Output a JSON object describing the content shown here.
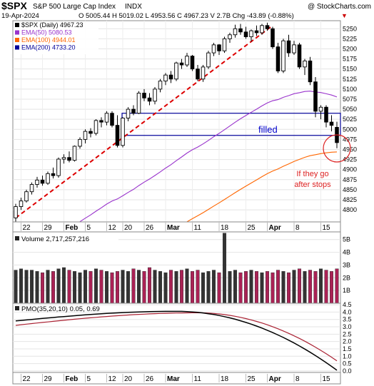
{
  "header": {
    "symbol": "$SPX",
    "name": "S&P 500 Large Cap Index",
    "exchange": "INDX",
    "copyright": "@ StockCharts.com",
    "date": "19-Apr-2024",
    "quote": "O 5005.44  H 5019.02  L 4953.56  C 4967.23  V 2.7B  Chg -43.89 (-0.88%)",
    "change_arrow": "▼"
  },
  "legend": [
    {
      "label": "$SPX (Daily) 4967.23",
      "color": "#000000"
    },
    {
      "label": "EMA(50) 5080.53",
      "color": "#9933cc"
    },
    {
      "label": "EMA(100) 4944.01",
      "color": "#ff6600"
    },
    {
      "label": "EMA(200) 4733.20",
      "color": "#000099"
    }
  ],
  "annotations": {
    "filled": "filled",
    "note_line1": "If they go",
    "note_line2": "after stops"
  },
  "volume_label": "Volume 2,717,257,216",
  "pmo_label": "PMO(35,20,10) 0.05, 0.69",
  "x_axis_labels": [
    "22",
    "29",
    "Feb",
    "5",
    "12",
    "20",
    "26",
    "Mar",
    "11",
    "18",
    "25",
    "Apr",
    "8",
    "15"
  ],
  "colors": {
    "up": "#000000",
    "down": "#000000",
    "ema50": "#9933cc",
    "ema100": "#ff6600",
    "ema200": "#000099",
    "trend": "#dd0000",
    "filled_box": "#000099",
    "vol_up": "#333333",
    "vol_down": "#aa2255",
    "pmo": "#000000",
    "pmo_signal": "#aa2233"
  },
  "chart_data": [
    {
      "type": "candlestick",
      "ylim": [
        4770,
        5270
      ],
      "y_ticks": [
        4800,
        4825,
        4850,
        4875,
        4900,
        4925,
        4950,
        4975,
        5000,
        5025,
        5050,
        5075,
        5100,
        5125,
        5150,
        5175,
        5200,
        5225,
        5250
      ],
      "candles": [
        {
          "o": 4780,
          "h": 4815,
          "l": 4770,
          "c": 4808
        },
        {
          "o": 4808,
          "h": 4830,
          "l": 4800,
          "c": 4822
        },
        {
          "o": 4822,
          "h": 4850,
          "l": 4818,
          "c": 4845
        },
        {
          "o": 4845,
          "h": 4868,
          "l": 4838,
          "c": 4863
        },
        {
          "o": 4863,
          "h": 4882,
          "l": 4855,
          "c": 4874
        },
        {
          "o": 4874,
          "h": 4885,
          "l": 4860,
          "c": 4866
        },
        {
          "o": 4866,
          "h": 4895,
          "l": 4862,
          "c": 4890
        },
        {
          "o": 4890,
          "h": 4905,
          "l": 4878,
          "c": 4885
        },
        {
          "o": 4885,
          "h": 4930,
          "l": 4880,
          "c": 4926
        },
        {
          "o": 4926,
          "h": 4938,
          "l": 4915,
          "c": 4930
        },
        {
          "o": 4930,
          "h": 4945,
          "l": 4918,
          "c": 4923
        },
        {
          "o": 4923,
          "h": 4960,
          "l": 4920,
          "c": 4958
        },
        {
          "o": 4958,
          "h": 4980,
          "l": 4952,
          "c": 4975
        },
        {
          "o": 4975,
          "h": 5000,
          "l": 4965,
          "c": 4995
        },
        {
          "o": 4995,
          "h": 5003,
          "l": 4980,
          "c": 4990
        },
        {
          "o": 4990,
          "h": 5025,
          "l": 4985,
          "c": 5022
        },
        {
          "o": 5022,
          "h": 5030,
          "l": 5005,
          "c": 5018
        },
        {
          "o": 5018,
          "h": 5045,
          "l": 5010,
          "c": 5040
        },
        {
          "o": 5040,
          "h": 5045,
          "l": 5005,
          "c": 5010
        },
        {
          "o": 5010,
          "h": 5035,
          "l": 4955,
          "c": 4960
        },
        {
          "o": 4960,
          "h": 5030,
          "l": 4955,
          "c": 5028
        },
        {
          "o": 5028,
          "h": 5055,
          "l": 5020,
          "c": 5050
        },
        {
          "o": 5050,
          "h": 5060,
          "l": 5035,
          "c": 5040
        },
        {
          "o": 5040,
          "h": 5095,
          "l": 5038,
          "c": 5090
        },
        {
          "o": 5090,
          "h": 5100,
          "l": 5070,
          "c": 5078
        },
        {
          "o": 5078,
          "h": 5090,
          "l": 5060,
          "c": 5070
        },
        {
          "o": 5070,
          "h": 5105,
          "l": 5062,
          "c": 5100
        },
        {
          "o": 5100,
          "h": 5125,
          "l": 5092,
          "c": 5120
        },
        {
          "o": 5120,
          "h": 5140,
          "l": 5110,
          "c": 5135
        },
        {
          "o": 5135,
          "h": 5145,
          "l": 5115,
          "c": 5125
        },
        {
          "o": 5125,
          "h": 5168,
          "l": 5120,
          "c": 5165
        },
        {
          "o": 5165,
          "h": 5175,
          "l": 5150,
          "c": 5160
        },
        {
          "o": 5160,
          "h": 5190,
          "l": 5155,
          "c": 5182
        },
        {
          "o": 5182,
          "h": 5185,
          "l": 5145,
          "c": 5150
        },
        {
          "o": 5150,
          "h": 5160,
          "l": 5120,
          "c": 5125
        },
        {
          "o": 5125,
          "h": 5160,
          "l": 5118,
          "c": 5155
        },
        {
          "o": 5155,
          "h": 5195,
          "l": 5150,
          "c": 5190
        },
        {
          "o": 5190,
          "h": 5215,
          "l": 5182,
          "c": 5210
        },
        {
          "o": 5210,
          "h": 5212,
          "l": 5185,
          "c": 5195
        },
        {
          "o": 5195,
          "h": 5230,
          "l": 5190,
          "c": 5225
        },
        {
          "o": 5225,
          "h": 5240,
          "l": 5215,
          "c": 5235
        },
        {
          "o": 5235,
          "h": 5260,
          "l": 5228,
          "c": 5250
        },
        {
          "o": 5250,
          "h": 5262,
          "l": 5235,
          "c": 5242
        },
        {
          "o": 5242,
          "h": 5255,
          "l": 5225,
          "c": 5230
        },
        {
          "o": 5230,
          "h": 5248,
          "l": 5218,
          "c": 5245
        },
        {
          "o": 5245,
          "h": 5258,
          "l": 5232,
          "c": 5240
        },
        {
          "o": 5240,
          "h": 5262,
          "l": 5235,
          "c": 5258
        },
        {
          "o": 5258,
          "h": 5265,
          "l": 5245,
          "c": 5250
        },
        {
          "o": 5250,
          "h": 5255,
          "l": 5200,
          "c": 5205
        },
        {
          "o": 5205,
          "h": 5215,
          "l": 5140,
          "c": 5145
        },
        {
          "o": 5145,
          "h": 5225,
          "l": 5140,
          "c": 5220
        },
        {
          "o": 5220,
          "h": 5235,
          "l": 5180,
          "c": 5190
        },
        {
          "o": 5190,
          "h": 5220,
          "l": 5185,
          "c": 5210
        },
        {
          "o": 5210,
          "h": 5215,
          "l": 5150,
          "c": 5155
        },
        {
          "o": 5155,
          "h": 5175,
          "l": 5135,
          "c": 5170
        },
        {
          "o": 5170,
          "h": 5180,
          "l": 5110,
          "c": 5118
        },
        {
          "o": 5118,
          "h": 5130,
          "l": 5030,
          "c": 5045
        },
        {
          "o": 5045,
          "h": 5060,
          "l": 5025,
          "c": 5055
        },
        {
          "o": 5055,
          "h": 5060,
          "l": 5005,
          "c": 5018
        },
        {
          "o": 5018,
          "h": 5035,
          "l": 4995,
          "c": 5010
        },
        {
          "o": 5005,
          "h": 5019,
          "l": 4953,
          "c": 4967
        }
      ],
      "ema50_end": 5080.53,
      "ema100_end": 4944.01,
      "ema200_end": 4733.2,
      "filled_zone": [
        4985,
        5040
      ]
    },
    {
      "type": "bar",
      "name": "Volume",
      "ylim": [
        0,
        5.6
      ],
      "y_ticks": [
        1,
        2,
        3,
        4,
        5
      ],
      "y_tick_labels": [
        "1B",
        "2B",
        "3B",
        "4B",
        "5B"
      ],
      "values": [
        2.6,
        2.7,
        2.6,
        2.6,
        2.5,
        2.4,
        2.6,
        2.5,
        2.7,
        2.8,
        2.6,
        2.5,
        2.4,
        2.6,
        2.5,
        2.7,
        2.6,
        2.5,
        2.4,
        2.5,
        2.6,
        2.5,
        2.7,
        2.6,
        2.5,
        2.8,
        2.6,
        2.5,
        2.4,
        2.6,
        2.5,
        2.6,
        2.7,
        2.5,
        2.6,
        2.4,
        2.5,
        2.6,
        2.4,
        5.5,
        2.5,
        2.6,
        2.4,
        2.5,
        2.6,
        2.5,
        2.4,
        2.5,
        2.4,
        2.6,
        2.5,
        2.4,
        2.6,
        2.7,
        2.5,
        2.6,
        2.5,
        2.7,
        2.6,
        2.5,
        2.7
      ]
    },
    {
      "type": "line",
      "name": "PMO",
      "ylim": [
        -0.1,
        4.6
      ],
      "y_ticks": [
        0.0,
        0.5,
        1.0,
        1.5,
        2.0,
        2.5,
        3.0,
        3.5,
        4.0,
        4.5
      ],
      "y_tick_labels": [
        "0.0",
        "0.5",
        "1.0",
        "1.5",
        "2.0",
        "2.5",
        "3.0",
        "3.5",
        "4.0",
        "4.5"
      ],
      "pmo_end": 0.05,
      "signal_end": 0.69
    }
  ]
}
